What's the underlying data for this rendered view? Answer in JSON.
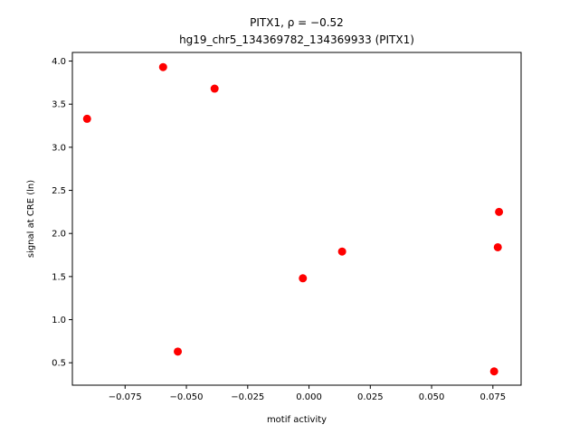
{
  "chart_data": {
    "type": "scatter",
    "title_line1": "PITX1, ρ = −0.52",
    "title_line2": "hg19_chr5_134369782_134369933 (PITX1)",
    "xlabel": "motif activity",
    "ylabel": "signal at CRE (ln)",
    "xlim": [
      -0.0965,
      0.0865
    ],
    "ylim": [
      0.24,
      4.1
    ],
    "grid": false,
    "point_color": "#ff0000",
    "points": [
      {
        "x": -0.0905,
        "y": 3.33
      },
      {
        "x": -0.0595,
        "y": 3.93
      },
      {
        "x": -0.0385,
        "y": 3.68
      },
      {
        "x": -0.0535,
        "y": 0.63
      },
      {
        "x": -0.0025,
        "y": 1.48
      },
      {
        "x": 0.0135,
        "y": 1.79
      },
      {
        "x": 0.0775,
        "y": 2.25
      },
      {
        "x": 0.077,
        "y": 1.84
      },
      {
        "x": 0.0755,
        "y": 0.4
      }
    ],
    "xticks": [
      {
        "value": -0.075,
        "label": "−0.075"
      },
      {
        "value": -0.05,
        "label": "−0.050"
      },
      {
        "value": -0.025,
        "label": "−0.025"
      },
      {
        "value": 0.0,
        "label": "0.000"
      },
      {
        "value": 0.025,
        "label": "0.025"
      },
      {
        "value": 0.05,
        "label": "0.050"
      },
      {
        "value": 0.075,
        "label": "0.075"
      }
    ],
    "yticks": [
      {
        "value": 0.5,
        "label": "0.5"
      },
      {
        "value": 1.0,
        "label": "1.0"
      },
      {
        "value": 1.5,
        "label": "1.5"
      },
      {
        "value": 2.0,
        "label": "2.0"
      },
      {
        "value": 2.5,
        "label": "2.5"
      },
      {
        "value": 3.0,
        "label": "3.0"
      },
      {
        "value": 3.5,
        "label": "3.5"
      },
      {
        "value": 4.0,
        "label": "4.0"
      }
    ]
  }
}
